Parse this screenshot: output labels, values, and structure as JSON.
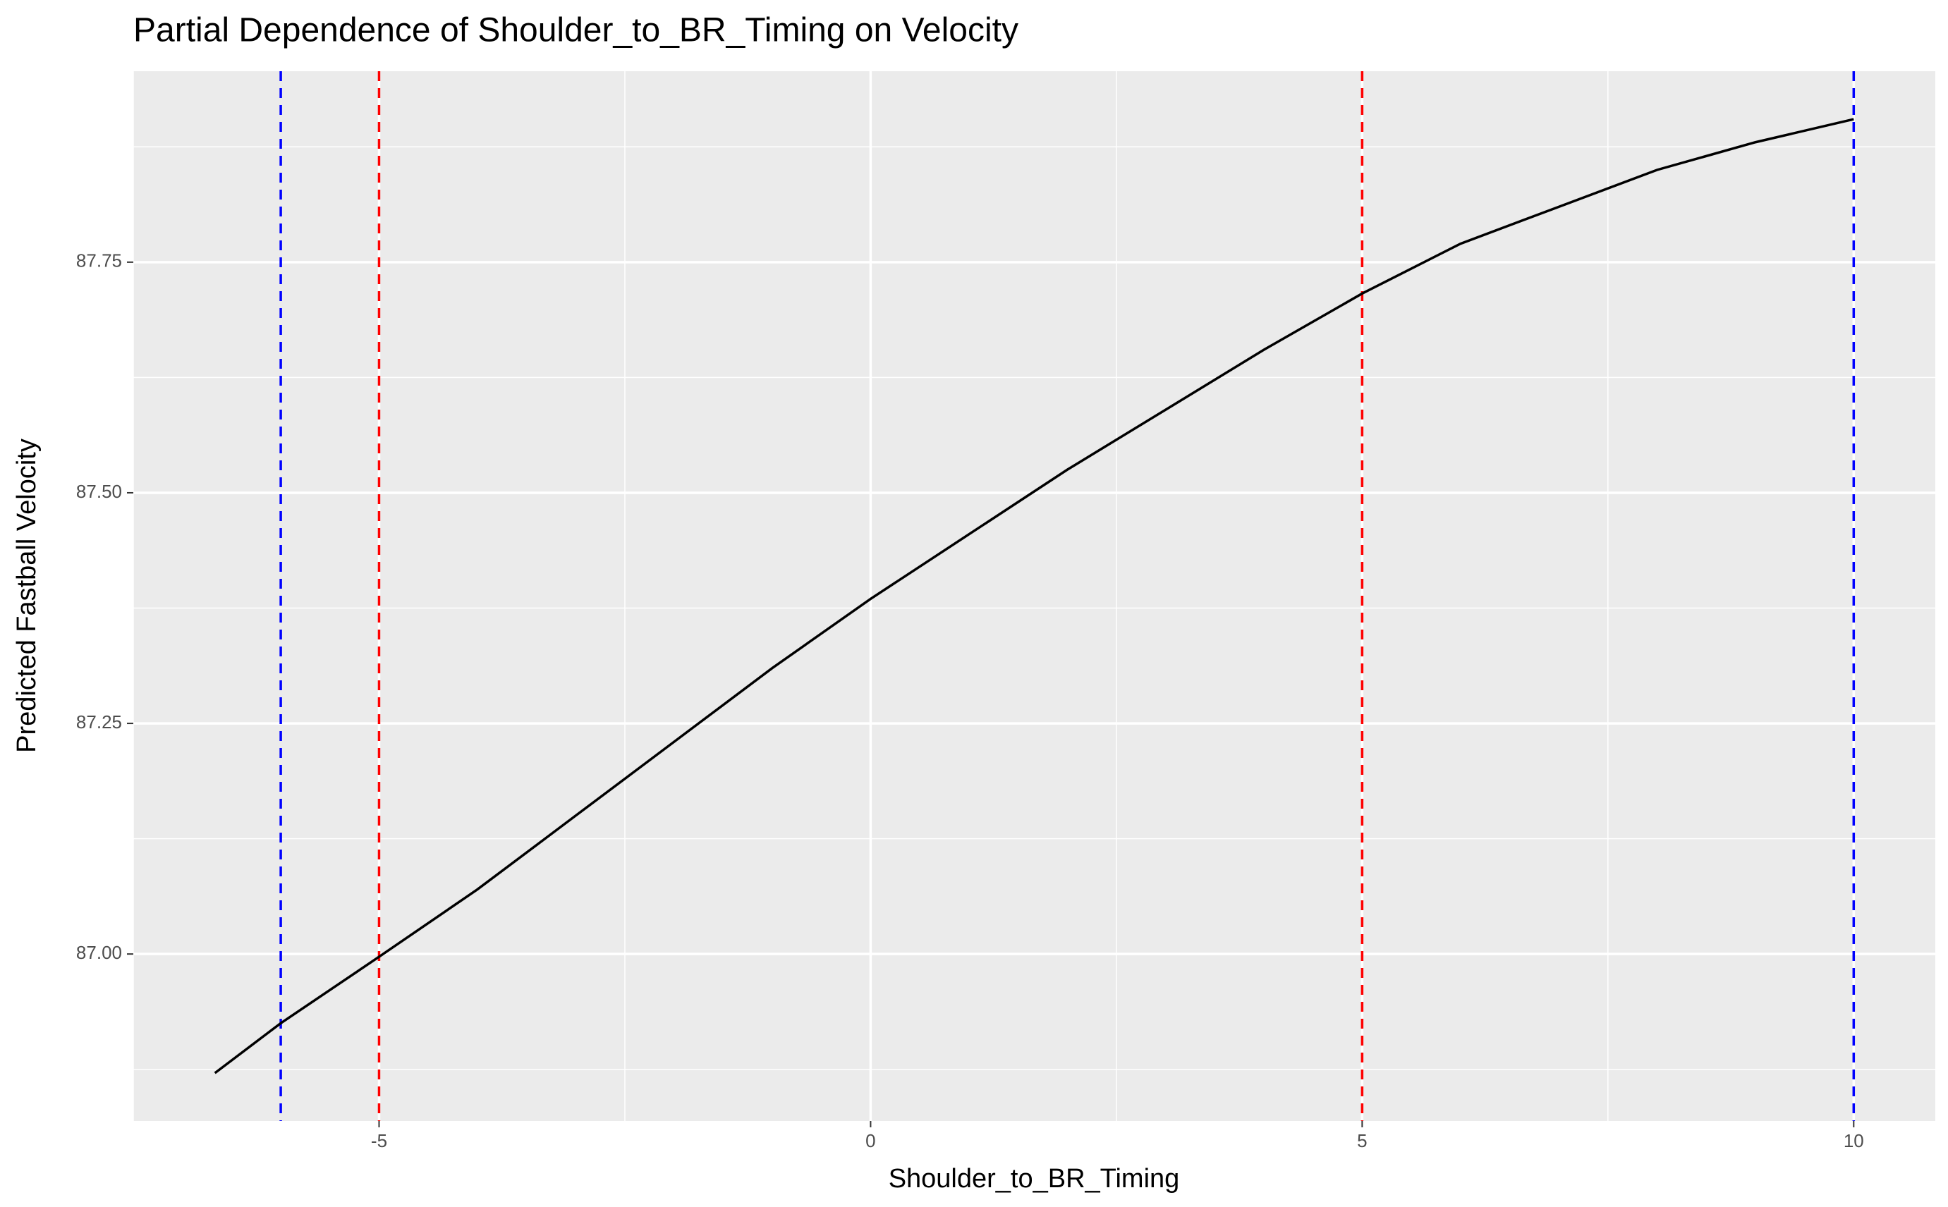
{
  "chart_data": {
    "type": "line",
    "title": "Partial Dependence of Shoulder_to_BR_Timing on Velocity",
    "x_label": "Shoulder_to_BR_Timing",
    "y_label": "Predicted Fastball Velocity",
    "x": [
      -6.67,
      -6,
      -5,
      -4,
      -3,
      -2,
      -1,
      0,
      1,
      2,
      3,
      4,
      5,
      6,
      7,
      8,
      9,
      10
    ],
    "series": [
      {
        "name": "Predicted",
        "color": "#000000",
        "values": [
          86.871,
          86.925,
          86.997,
          87.07,
          87.15,
          87.23,
          87.31,
          87.385,
          87.455,
          87.525,
          87.59,
          87.655,
          87.716,
          87.77,
          87.81,
          87.85,
          87.88,
          87.905
        ]
      }
    ],
    "reference_lines": [
      {
        "x": -6,
        "color": "#0000ff"
      },
      {
        "x": -5,
        "color": "#ff0000"
      },
      {
        "x": 5,
        "color": "#ff0000"
      },
      {
        "x": 10,
        "color": "#0000ff"
      }
    ],
    "xlim": [
      -7.5,
      10.83
    ],
    "ylim": [
      86.819,
      87.957
    ],
    "xticks": [
      -5,
      0,
      5,
      10
    ],
    "yticks": [
      {
        "value": 87,
        "label": "87.00"
      },
      {
        "value": 87.25,
        "label": "87.25"
      },
      {
        "value": 87.5,
        "label": "87.50"
      },
      {
        "value": 87.75,
        "label": "87.75"
      }
    ],
    "grid": true
  }
}
